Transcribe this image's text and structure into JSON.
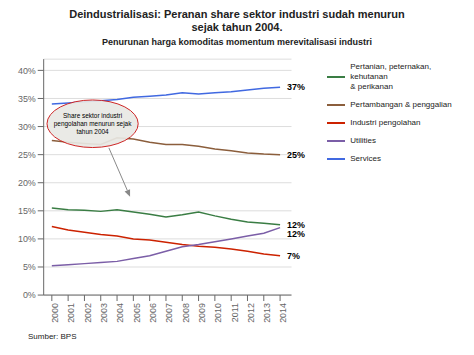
{
  "chart_data": {
    "type": "line",
    "title": "Deindustrialisasi: Peranan share sektor industri sudah menurun\nsejak tahun 2004.",
    "subtitle": "Penurunan harga komoditas momentum merevitalisasi industri",
    "source": "Sumber: BPS",
    "x": [
      2000,
      2001,
      2002,
      2003,
      2004,
      2005,
      2006,
      2007,
      2008,
      2009,
      2010,
      2011,
      2012,
      2013,
      2014
    ],
    "series": [
      {
        "name": "Pertanian, peternakan, kehutanan\n& perikanan",
        "color": "#3a7d44",
        "values": [
          0.155,
          0.152,
          0.151,
          0.149,
          0.152,
          0.148,
          0.144,
          0.139,
          0.143,
          0.148,
          0.141,
          0.135,
          0.13,
          0.128,
          0.125
        ],
        "end_label": "12%"
      },
      {
        "name": "Pertambangan & penggalian",
        "color": "#8b5e3c",
        "values": [
          0.275,
          0.272,
          0.27,
          0.268,
          0.28,
          0.278,
          0.272,
          0.268,
          0.268,
          0.265,
          0.26,
          0.257,
          0.253,
          0.251,
          0.25
        ],
        "end_label": "25%"
      },
      {
        "name": "Industri pengolahan",
        "color": "#cc2200",
        "values": [
          0.122,
          0.116,
          0.112,
          0.108,
          0.105,
          0.1,
          0.098,
          0.094,
          0.09,
          0.087,
          0.085,
          0.082,
          0.078,
          0.073,
          0.07
        ],
        "end_label": "7%"
      },
      {
        "name": "Utilities",
        "color": "#7b5ea7",
        "values": [
          0.052,
          0.054,
          0.056,
          0.058,
          0.06,
          0.065,
          0.07,
          0.078,
          0.086,
          0.09,
          0.095,
          0.1,
          0.105,
          0.11,
          0.12
        ],
        "end_label": "12%"
      },
      {
        "name": "Services",
        "color": "#4169e1",
        "values": [
          0.34,
          0.342,
          0.344,
          0.346,
          0.348,
          0.352,
          0.354,
          0.356,
          0.36,
          0.358,
          0.36,
          0.362,
          0.365,
          0.368,
          0.37
        ],
        "end_label": "37%"
      }
    ],
    "xlim": [
      1999.5,
      2014.7
    ],
    "xticks": [
      2000,
      2001,
      2002,
      2003,
      2004,
      2005,
      2006,
      2007,
      2008,
      2009,
      2010,
      2011,
      2012,
      2013,
      2014
    ],
    "ylim": [
      0,
      0.42
    ],
    "yticks": [
      {
        "value": 0.0,
        "label": "0%"
      },
      {
        "value": 0.05,
        "label": "5%"
      },
      {
        "value": 0.1,
        "label": "10%"
      },
      {
        "value": 0.15,
        "label": "15%"
      },
      {
        "value": 0.2,
        "label": "20%"
      },
      {
        "value": 0.25,
        "label": "25%"
      },
      {
        "value": 0.3,
        "label": "30%"
      },
      {
        "value": 0.35,
        "label": "35%"
      },
      {
        "value": 0.4,
        "label": "40%"
      }
    ],
    "grid": true,
    "annotations": [
      {
        "text": "Share sektor industri\npengolahan menurun sejak\ntahun 2004",
        "x": 2002.5,
        "y": 0.305,
        "arrow_tail": [
          2003.5,
          0.262
        ],
        "arrow_head": [
          2004.8,
          0.175
        ]
      }
    ]
  }
}
